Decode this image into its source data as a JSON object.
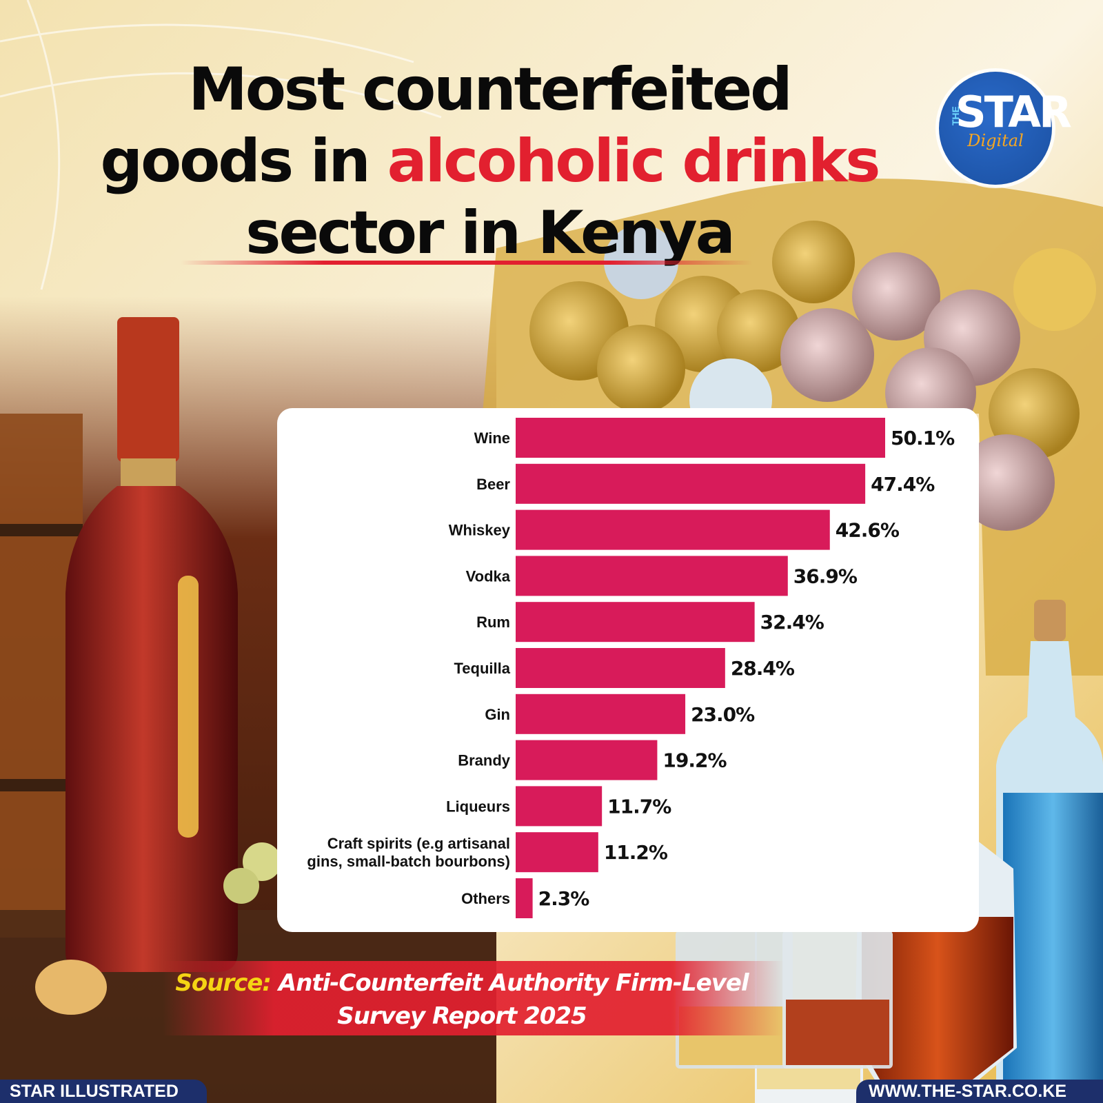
{
  "title": {
    "line1": "Most counterfeited",
    "line2_pre": "goods in ",
    "line2_highlight": "alcoholic drinks",
    "line3": "sector in Kenya"
  },
  "logo": {
    "the": "THE",
    "star": "STAR",
    "sub": "Digital"
  },
  "source": {
    "label": "Source:",
    "text": "Anti-Counterfeit Authority Firm-Level",
    "text2": "Survey Report 2025"
  },
  "footer": {
    "left": "STAR ILLUSTRATED",
    "right": "WWW.THE-STAR.CO.KE"
  },
  "colors": {
    "bar": "#d81b5a",
    "highlight": "#e2202f",
    "footer": "#1d2f6b"
  },
  "chart_data": {
    "type": "bar",
    "orientation": "horizontal",
    "categories": [
      "Wine",
      "Beer",
      "Whiskey",
      "Vodka",
      "Rum",
      "Tequilla",
      "Gin",
      "Brandy",
      "Liqueurs",
      "Craft spirits (e.g artisanal gins, small-batch bourbons)",
      "Others"
    ],
    "category_lines": [
      [
        "Wine"
      ],
      [
        "Beer"
      ],
      [
        "Whiskey"
      ],
      [
        "Vodka"
      ],
      [
        "Rum"
      ],
      [
        "Tequilla"
      ],
      [
        "Gin"
      ],
      [
        "Brandy"
      ],
      [
        "Liqueurs"
      ],
      [
        "Craft spirits (e.g artisanal",
        "gins, small-batch bourbons)"
      ],
      [
        "Others"
      ]
    ],
    "values": [
      50.1,
      47.4,
      42.6,
      36.9,
      32.4,
      28.4,
      23.0,
      19.2,
      11.7,
      11.2,
      2.3
    ],
    "value_labels": [
      "50.1%",
      "47.4%",
      "42.6%",
      "36.9%",
      "32.4%",
      "28.4%",
      "23.0%",
      "19.2%",
      "11.7%",
      "11.2%",
      "2.3%"
    ],
    "xlim": [
      0,
      50.1
    ]
  }
}
